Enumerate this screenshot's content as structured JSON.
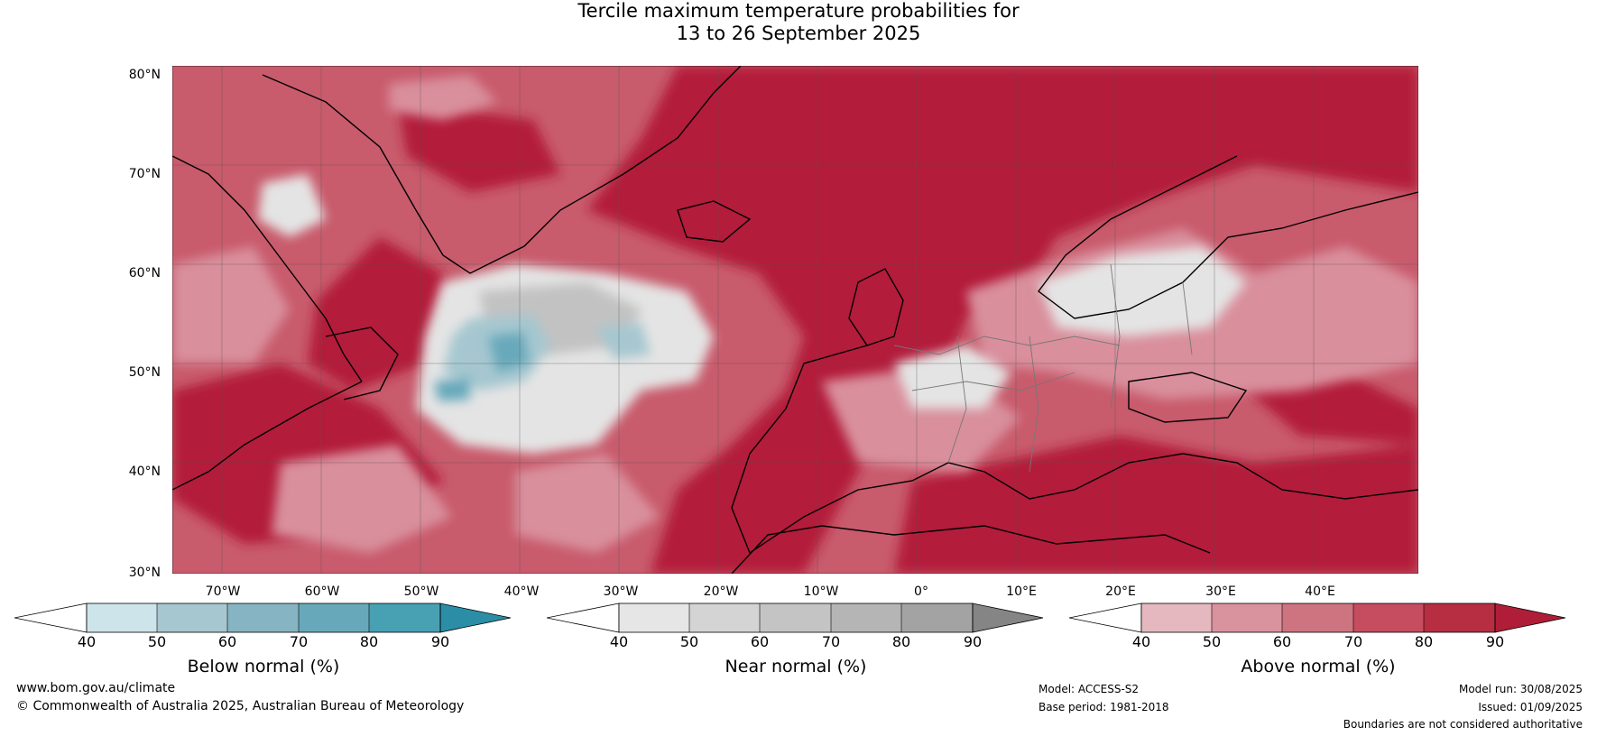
{
  "title_line1": "Tercile maximum temperature probabilities for",
  "title_line2": "13 to 26 September 2025",
  "lat_labels": [
    "80°N",
    "70°N",
    "60°N",
    "50°N",
    "40°N",
    "30°N"
  ],
  "lon_labels": [
    "70°W",
    "60°W",
    "50°W",
    "40°W",
    "30°W",
    "20°W",
    "10°W",
    "0°",
    "10°E",
    "20°E",
    "30°E",
    "40°E"
  ],
  "colorbars": [
    {
      "label": "Below normal (%)",
      "ticks": [
        "40",
        "50",
        "60",
        "70",
        "80",
        "90"
      ],
      "colors": [
        "#ffffff",
        "#cde4ea",
        "#a6c7d0",
        "#87b4c2",
        "#67a9bb",
        "#48a0b3",
        "#2b8ea6"
      ]
    },
    {
      "label": "Near normal (%)",
      "ticks": [
        "40",
        "50",
        "60",
        "70",
        "80",
        "90"
      ],
      "colors": [
        "#ffffff",
        "#e6e6e6",
        "#d4d4d4",
        "#c4c4c4",
        "#b5b5b5",
        "#a3a3a3",
        "#858585"
      ]
    },
    {
      "label": "Above normal (%)",
      "ticks": [
        "40",
        "50",
        "60",
        "70",
        "80",
        "90"
      ],
      "colors": [
        "#ffffff",
        "#e5b8c0",
        "#d9939e",
        "#ce7380",
        "#c54d5f",
        "#b72d42",
        "#b01d38"
      ]
    }
  ],
  "footer": {
    "website": "www.bom.gov.au/climate",
    "copyright": "© Commonwealth of Australia 2025, Australian Bureau of Meteorology",
    "model": "Model: ACCESS-S2",
    "base_period": "Base period: 1981-2018",
    "model_run": "Model run: 30/08/2025",
    "issued": "Issued: 01/09/2025",
    "disclaimer": "Boundaries are not considered authoritative"
  }
}
